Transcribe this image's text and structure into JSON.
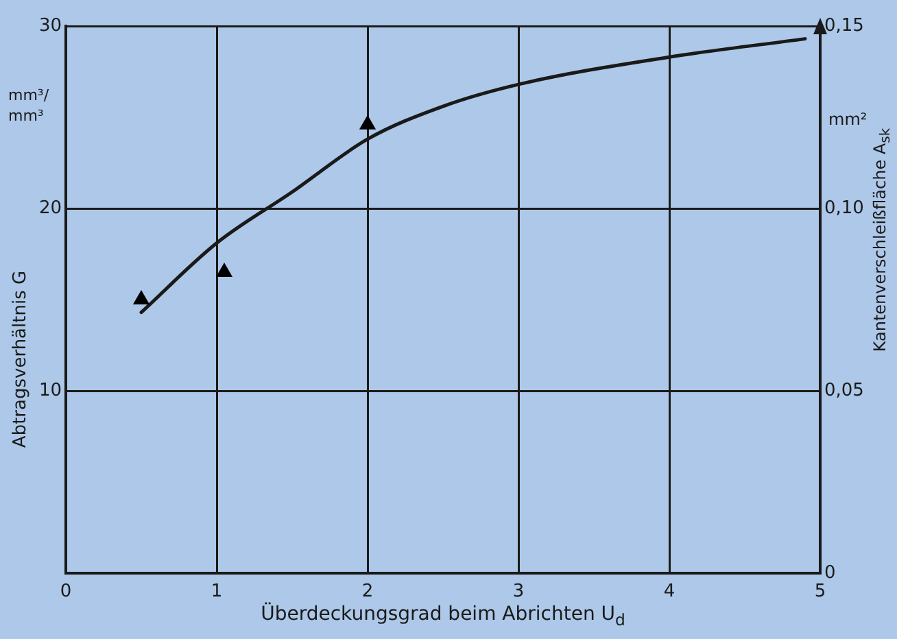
{
  "chart_data": {
    "type": "line",
    "xlabel": "Überdeckungsgrad beim Abrichten U$_{d}$",
    "ylabel": "Abtragsverhältnis G",
    "y2label": "Kantenverschleißfläche A$_{sk}$",
    "annotations": [
      "mm³/mm³",
      "mm²"
    ],
    "xlim": [
      0,
      5
    ],
    "xticks": [
      0,
      1,
      2,
      3,
      4,
      5
    ],
    "ylim": [
      0,
      30
    ],
    "yticks": [
      {
        "value": 0,
        "label": null
      },
      10,
      20,
      30
    ],
    "y2lim": [
      0,
      0.15
    ],
    "y2ticks": [
      0,
      {
        "value": 0.05,
        "label": "0,05"
      },
      {
        "value": 0.1,
        "label": "0,10"
      },
      {
        "value": 0.15,
        "label": "0,15"
      }
    ],
    "grid": true,
    "legend": false,
    "series": [
      {
        "type": "scatter",
        "color": "#000000",
        "marker": "triangle",
        "x": [
          0.5,
          1.05,
          2
        ],
        "values": [
          15,
          16.5,
          24.6
        ]
      },
      {
        "axis": "y2",
        "color": "#1a1a1a",
        "marker": "none",
        "x": [
          0.5,
          1,
          1.5,
          2,
          2.5,
          3,
          4,
          4.9
        ],
        "values": [
          0.0715,
          0.0905,
          0.1045,
          0.119,
          0.128,
          0.134,
          0.1415,
          0.1465
        ]
      }
    ]
  }
}
